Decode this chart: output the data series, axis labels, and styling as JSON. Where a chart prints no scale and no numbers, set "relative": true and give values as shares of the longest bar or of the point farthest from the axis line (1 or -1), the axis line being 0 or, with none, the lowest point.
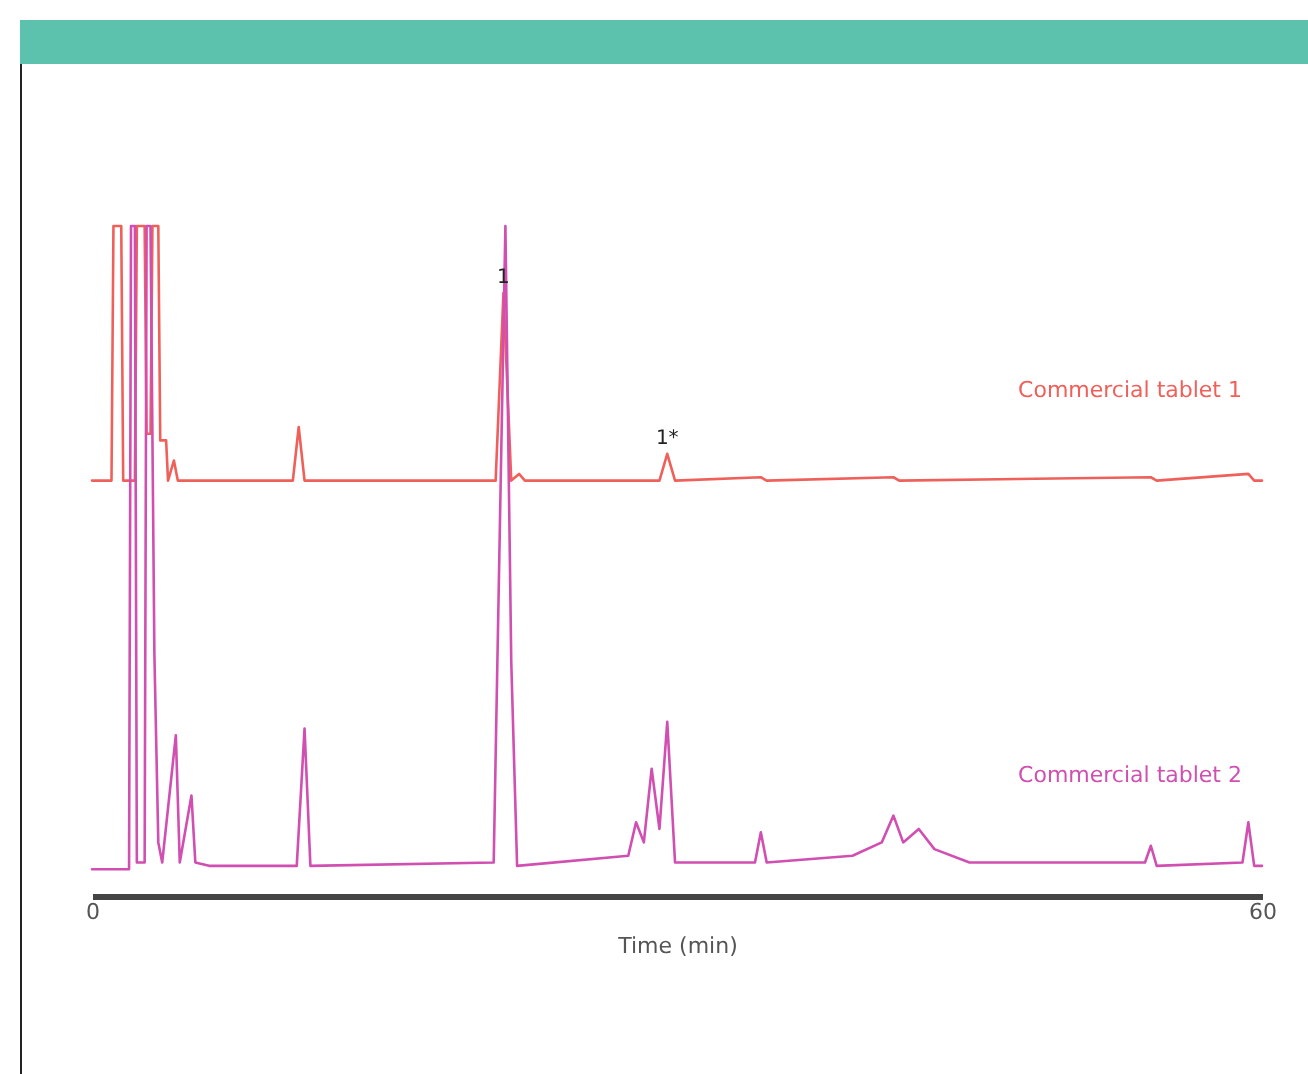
{
  "chart_data": {
    "type": "line",
    "relative": true,
    "xlabel": "Time (min)",
    "xlim": [
      0,
      60
    ],
    "xticks": [
      0,
      60
    ],
    "marker": "none",
    "line_style": "solid",
    "annotations": [
      {
        "text": "1",
        "x": 21.1,
        "y": 0.9
      },
      {
        "text": "1*",
        "x": 29.5,
        "y": 0.66
      }
    ],
    "series": [
      {
        "name": "Commercial tablet 1",
        "color": "#f0605a",
        "x": [
          0,
          1.0,
          1.1,
          1.5,
          1.6,
          2.2,
          2.3,
          2.7,
          2.8,
          3.0,
          3.1,
          3.4,
          3.5,
          3.8,
          3.9,
          4.2,
          4.4,
          10.3,
          10.6,
          10.9,
          20.7,
          21.1,
          21.5,
          21.9,
          22.2,
          29.1,
          29.5,
          29.9,
          34.3,
          34.6,
          41.1,
          41.4,
          54.3,
          54.6,
          59.3,
          59.6,
          60
        ],
        "values": [
          0.62,
          0.62,
          1.0,
          1.0,
          0.62,
          0.62,
          1.0,
          1.0,
          0.69,
          0.69,
          1.0,
          1.0,
          0.68,
          0.68,
          0.62,
          0.65,
          0.62,
          0.62,
          0.7,
          0.62,
          0.62,
          0.9,
          0.62,
          0.63,
          0.62,
          0.62,
          0.66,
          0.62,
          0.625,
          0.62,
          0.625,
          0.62,
          0.625,
          0.62,
          0.63,
          0.62,
          0.62
        ]
      },
      {
        "name": "Commercial tablet 2",
        "color": "#d04fb0",
        "x": [
          0,
          1.9,
          2.0,
          2.2,
          2.3,
          2.7,
          2.8,
          3.0,
          3.2,
          3.4,
          3.6,
          4.3,
          4.5,
          5.1,
          5.3,
          6,
          10.5,
          10.9,
          11.2,
          20.6,
          21.2,
          21.5,
          21.8,
          27.5,
          27.9,
          28.3,
          28.7,
          29.1,
          29.5,
          29.9,
          34.0,
          34.3,
          34.6,
          39,
          40.5,
          41.1,
          41.6,
          42.4,
          43.2,
          45,
          54,
          54.3,
          54.6,
          59,
          59.3,
          59.6,
          60
        ],
        "values": [
          0.04,
          0.04,
          1.0,
          1.0,
          0.05,
          0.05,
          1.0,
          1.0,
          0.36,
          0.08,
          0.05,
          0.24,
          0.05,
          0.15,
          0.05,
          0.045,
          0.045,
          0.25,
          0.045,
          0.05,
          1.0,
          0.35,
          0.045,
          0.06,
          0.11,
          0.08,
          0.19,
          0.1,
          0.26,
          0.05,
          0.05,
          0.095,
          0.05,
          0.06,
          0.08,
          0.12,
          0.08,
          0.1,
          0.07,
          0.05,
          0.05,
          0.075,
          0.045,
          0.05,
          0.11,
          0.045,
          0.045
        ]
      }
    ]
  }
}
